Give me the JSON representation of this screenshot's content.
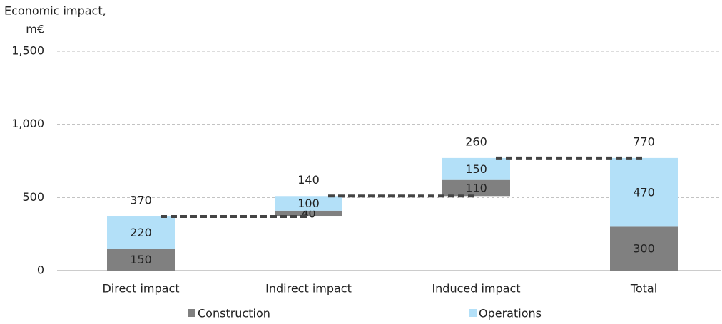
{
  "chart_data": {
    "type": "waterfall",
    "y_label": [
      "Economic impact,",
      "m€"
    ],
    "categories": [
      "Direct impact",
      "Indirect impact",
      "Induced impact",
      "Total"
    ],
    "series": [
      {
        "name": "Construction",
        "color": "#808080",
        "values": [
          150,
          40,
          110,
          300
        ]
      },
      {
        "name": "Operations",
        "color": "#b3e0f8",
        "values": [
          220,
          100,
          150,
          470
        ]
      }
    ],
    "totals": [
      370,
      140,
      260,
      770
    ],
    "ylim": [
      0,
      1500
    ],
    "yticks": [
      0,
      500,
      {
        "value": 1000,
        "label": "1,000"
      },
      {
        "value": 1500,
        "label": "1,500"
      }
    ],
    "grid": true,
    "legend": "bottom"
  }
}
